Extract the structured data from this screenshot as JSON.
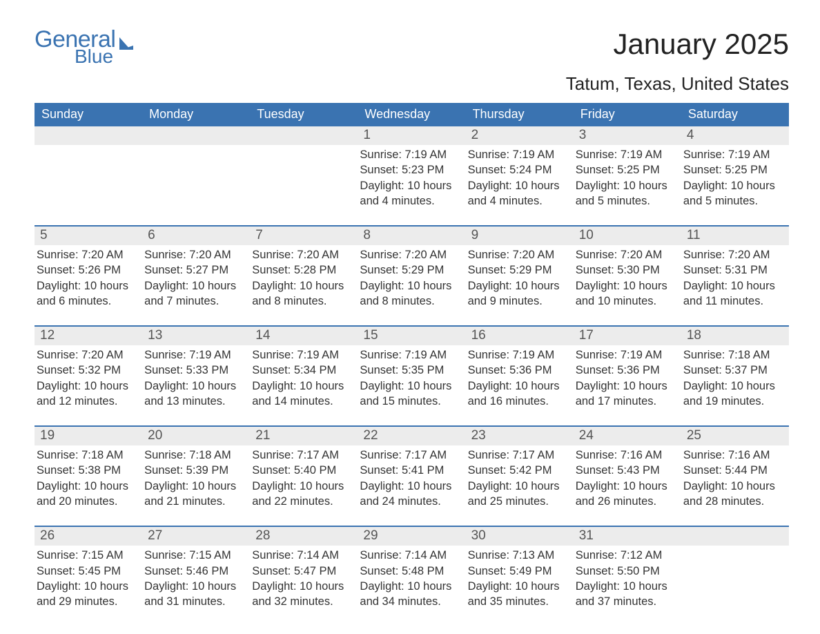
{
  "logo": {
    "general": "General",
    "blue": "Blue",
    "sail_color": "#3a73b1"
  },
  "header": {
    "month": "January 2025",
    "location": "Tatum, Texas, United States"
  },
  "colors": {
    "header_bg": "#3a73b1",
    "header_text": "#ffffff",
    "row_border": "#3a73b1",
    "daynum_bg": "#ececec",
    "body_text": "#333333",
    "title_text": "#222222",
    "logo_text": "#3a73b1"
  },
  "fonts": {
    "month_title_pt": 42,
    "location_pt": 26,
    "dow_pt": 18,
    "daynum_pt": 19,
    "body_pt": 16.5,
    "logo_general_pt": 34,
    "logo_blue_pt": 28
  },
  "dow": [
    "Sunday",
    "Monday",
    "Tuesday",
    "Wednesday",
    "Thursday",
    "Friday",
    "Saturday"
  ],
  "weeks": [
    [
      null,
      null,
      null,
      {
        "n": "1",
        "sunrise": "7:19 AM",
        "sunset": "5:23 PM",
        "daylight": "10 hours and 4 minutes."
      },
      {
        "n": "2",
        "sunrise": "7:19 AM",
        "sunset": "5:24 PM",
        "daylight": "10 hours and 4 minutes."
      },
      {
        "n": "3",
        "sunrise": "7:19 AM",
        "sunset": "5:25 PM",
        "daylight": "10 hours and 5 minutes."
      },
      {
        "n": "4",
        "sunrise": "7:19 AM",
        "sunset": "5:25 PM",
        "daylight": "10 hours and 5 minutes."
      }
    ],
    [
      {
        "n": "5",
        "sunrise": "7:20 AM",
        "sunset": "5:26 PM",
        "daylight": "10 hours and 6 minutes."
      },
      {
        "n": "6",
        "sunrise": "7:20 AM",
        "sunset": "5:27 PM",
        "daylight": "10 hours and 7 minutes."
      },
      {
        "n": "7",
        "sunrise": "7:20 AM",
        "sunset": "5:28 PM",
        "daylight": "10 hours and 8 minutes."
      },
      {
        "n": "8",
        "sunrise": "7:20 AM",
        "sunset": "5:29 PM",
        "daylight": "10 hours and 8 minutes."
      },
      {
        "n": "9",
        "sunrise": "7:20 AM",
        "sunset": "5:29 PM",
        "daylight": "10 hours and 9 minutes."
      },
      {
        "n": "10",
        "sunrise": "7:20 AM",
        "sunset": "5:30 PM",
        "daylight": "10 hours and 10 minutes."
      },
      {
        "n": "11",
        "sunrise": "7:20 AM",
        "sunset": "5:31 PM",
        "daylight": "10 hours and 11 minutes."
      }
    ],
    [
      {
        "n": "12",
        "sunrise": "7:20 AM",
        "sunset": "5:32 PM",
        "daylight": "10 hours and 12 minutes."
      },
      {
        "n": "13",
        "sunrise": "7:19 AM",
        "sunset": "5:33 PM",
        "daylight": "10 hours and 13 minutes."
      },
      {
        "n": "14",
        "sunrise": "7:19 AM",
        "sunset": "5:34 PM",
        "daylight": "10 hours and 14 minutes."
      },
      {
        "n": "15",
        "sunrise": "7:19 AM",
        "sunset": "5:35 PM",
        "daylight": "10 hours and 15 minutes."
      },
      {
        "n": "16",
        "sunrise": "7:19 AM",
        "sunset": "5:36 PM",
        "daylight": "10 hours and 16 minutes."
      },
      {
        "n": "17",
        "sunrise": "7:19 AM",
        "sunset": "5:36 PM",
        "daylight": "10 hours and 17 minutes."
      },
      {
        "n": "18",
        "sunrise": "7:18 AM",
        "sunset": "5:37 PM",
        "daylight": "10 hours and 19 minutes."
      }
    ],
    [
      {
        "n": "19",
        "sunrise": "7:18 AM",
        "sunset": "5:38 PM",
        "daylight": "10 hours and 20 minutes."
      },
      {
        "n": "20",
        "sunrise": "7:18 AM",
        "sunset": "5:39 PM",
        "daylight": "10 hours and 21 minutes."
      },
      {
        "n": "21",
        "sunrise": "7:17 AM",
        "sunset": "5:40 PM",
        "daylight": "10 hours and 22 minutes."
      },
      {
        "n": "22",
        "sunrise": "7:17 AM",
        "sunset": "5:41 PM",
        "daylight": "10 hours and 24 minutes."
      },
      {
        "n": "23",
        "sunrise": "7:17 AM",
        "sunset": "5:42 PM",
        "daylight": "10 hours and 25 minutes."
      },
      {
        "n": "24",
        "sunrise": "7:16 AM",
        "sunset": "5:43 PM",
        "daylight": "10 hours and 26 minutes."
      },
      {
        "n": "25",
        "sunrise": "7:16 AM",
        "sunset": "5:44 PM",
        "daylight": "10 hours and 28 minutes."
      }
    ],
    [
      {
        "n": "26",
        "sunrise": "7:15 AM",
        "sunset": "5:45 PM",
        "daylight": "10 hours and 29 minutes."
      },
      {
        "n": "27",
        "sunrise": "7:15 AM",
        "sunset": "5:46 PM",
        "daylight": "10 hours and 31 minutes."
      },
      {
        "n": "28",
        "sunrise": "7:14 AM",
        "sunset": "5:47 PM",
        "daylight": "10 hours and 32 minutes."
      },
      {
        "n": "29",
        "sunrise": "7:14 AM",
        "sunset": "5:48 PM",
        "daylight": "10 hours and 34 minutes."
      },
      {
        "n": "30",
        "sunrise": "7:13 AM",
        "sunset": "5:49 PM",
        "daylight": "10 hours and 35 minutes."
      },
      {
        "n": "31",
        "sunrise": "7:12 AM",
        "sunset": "5:50 PM",
        "daylight": "10 hours and 37 minutes."
      },
      null
    ]
  ],
  "labels": {
    "sunrise_prefix": "Sunrise: ",
    "sunset_prefix": "Sunset: ",
    "daylight_prefix": "Daylight: "
  }
}
